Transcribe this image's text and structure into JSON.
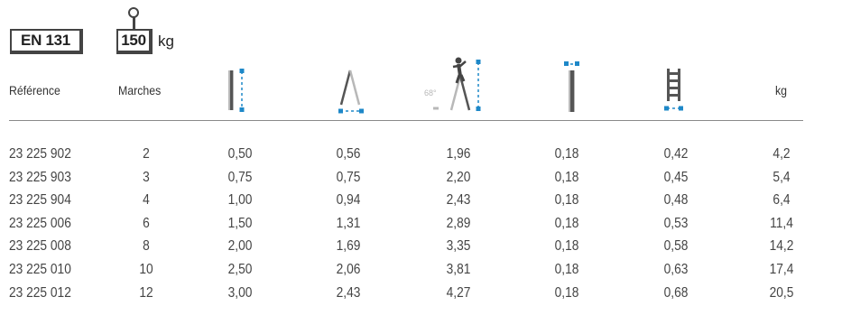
{
  "badges": {
    "standard": "EN 131",
    "load": "150",
    "load_unit": "kg"
  },
  "headers": {
    "reference": "Référence",
    "steps": "Marches",
    "weight": "kg",
    "angle": "68°"
  },
  "icons": [
    "height-icon",
    "base-width-icon",
    "working-height-icon",
    "depth-icon",
    "step-spacing-icon"
  ],
  "rows": [
    {
      "ref": "23 225 902",
      "steps": "2",
      "v1": "0,50",
      "v2": "0,56",
      "v3": "1,96",
      "v4": "0,18",
      "v5": "0,42",
      "kg": "4,2"
    },
    {
      "ref": "23 225 903",
      "steps": "3",
      "v1": "0,75",
      "v2": "0,75",
      "v3": "2,20",
      "v4": "0,18",
      "v5": "0,45",
      "kg": "5,4"
    },
    {
      "ref": "23 225 904",
      "steps": "4",
      "v1": "1,00",
      "v2": "0,94",
      "v3": "2,43",
      "v4": "0,18",
      "v5": "0,48",
      "kg": "6,4"
    },
    {
      "ref": "23 225 006",
      "steps": "6",
      "v1": "1,50",
      "v2": "1,31",
      "v3": "2,89",
      "v4": "0,18",
      "v5": "0,53",
      "kg": "11,4"
    },
    {
      "ref": "23 225 008",
      "steps": "8",
      "v1": "2,00",
      "v2": "1,69",
      "v3": "3,35",
      "v4": "0,18",
      "v5": "0,58",
      "kg": "14,2"
    },
    {
      "ref": "23 225 010",
      "steps": "10",
      "v1": "2,50",
      "v2": "2,06",
      "v3": "3,81",
      "v4": "0,18",
      "v5": "0,63",
      "kg": "17,4"
    },
    {
      "ref": "23 225 012",
      "steps": "12",
      "v1": "3,00",
      "v2": "2,43",
      "v3": "4,27",
      "v4": "0,18",
      "v5": "0,68",
      "kg": "20,5"
    }
  ],
  "colors": {
    "accent_blue": "#1e88c8",
    "dark": "#444444",
    "light_gray": "#b8b8b8"
  }
}
